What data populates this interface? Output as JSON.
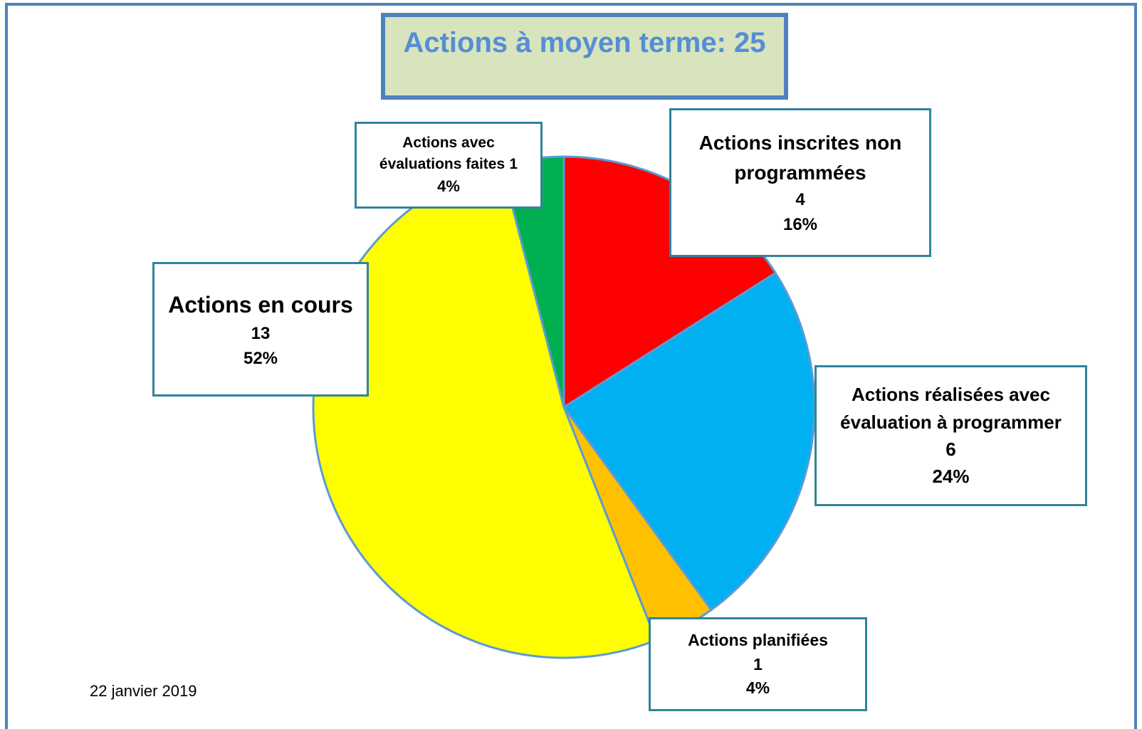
{
  "chart_data": {
    "type": "pie",
    "title": "Actions à moyen terme: 25",
    "categories": [
      "Actions inscrites non programmées",
      "Actions réalisées avec évaluation à programmer",
      "Actions planifiées",
      "Actions en cours",
      "Actions avec évaluations faites"
    ],
    "values": [
      4,
      6,
      1,
      13,
      1
    ],
    "percentages": [
      16,
      24,
      4,
      52,
      4
    ],
    "percentage_labels": [
      "16%",
      "24%",
      "4%",
      "52%",
      "4%"
    ],
    "colors": [
      "#ff0000",
      "#00b0f0",
      "#ffc000",
      "#ffff00",
      "#00b050"
    ],
    "date": "22 janvier 2019"
  }
}
